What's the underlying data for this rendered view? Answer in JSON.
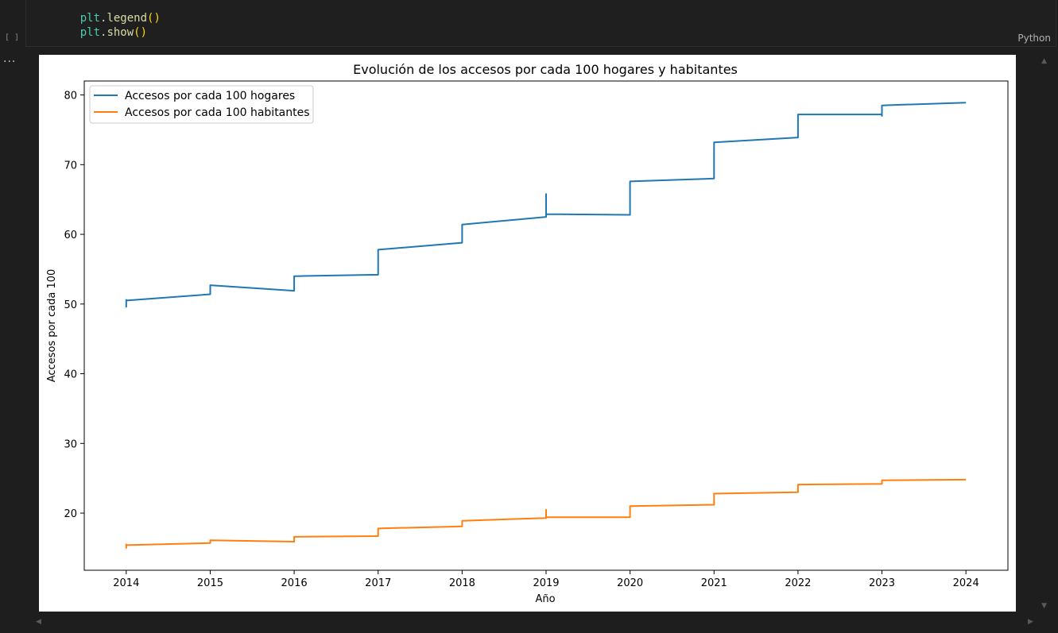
{
  "cell": {
    "code_lines": [
      {
        "obj": "plt",
        "fn": "legend",
        "args": "()"
      },
      {
        "obj": "plt",
        "fn": "show",
        "args": "()"
      }
    ],
    "execution_count": "[ ]",
    "language": "Python",
    "output_menu": "..."
  },
  "chart_data": {
    "type": "line",
    "title": "Evolución de los accesos por cada 100 hogares y habitantes",
    "xlabel": "Año",
    "ylabel": "Accesos por cada 100",
    "xlim": [
      2013.5,
      2024.5
    ],
    "ylim": [
      11.8,
      82
    ],
    "x_ticks": [
      2014,
      2015,
      2016,
      2017,
      2018,
      2019,
      2020,
      2021,
      2022,
      2023,
      2024
    ],
    "x_tick_labels": [
      "2014",
      "2015",
      "2016",
      "2017",
      "2018",
      "2019",
      "2020",
      "2021",
      "2022",
      "2023",
      "2024"
    ],
    "y_ticks": [
      20,
      30,
      40,
      50,
      60,
      70,
      80
    ],
    "y_tick_labels": [
      "20",
      "30",
      "40",
      "50",
      "60",
      "70",
      "80"
    ],
    "grid": false,
    "legend_position": "top-left",
    "series": [
      {
        "name": "Accesos por cada 100 hogares",
        "color": "#1f77b4",
        "x": [
          2014,
          2014,
          2014,
          2015,
          2015,
          2016,
          2016,
          2017,
          2017,
          2018,
          2018,
          2019,
          2019,
          2019,
          2020,
          2020,
          2021,
          2021,
          2022,
          2022,
          2023,
          2023,
          2023,
          2024
        ],
        "y": [
          50.7,
          49.6,
          50.5,
          51.4,
          52.7,
          51.9,
          54.0,
          54.2,
          57.8,
          58.8,
          61.4,
          62.5,
          65.8,
          62.9,
          62.8,
          67.6,
          68.0,
          73.2,
          73.9,
          77.2,
          77.2,
          77.0,
          78.5,
          78.9
        ]
      },
      {
        "name": "Accesos por cada 100 habitantes",
        "color": "#ff7f0e",
        "x": [
          2014,
          2014,
          2014,
          2015,
          2015,
          2016,
          2016,
          2017,
          2017,
          2018,
          2018,
          2019,
          2019,
          2019,
          2020,
          2020,
          2021,
          2021,
          2022,
          2022,
          2023,
          2023,
          2024
        ],
        "y": [
          15.6,
          15.0,
          15.4,
          15.7,
          16.1,
          15.9,
          16.6,
          16.7,
          17.8,
          18.1,
          18.9,
          19.3,
          20.5,
          19.4,
          19.4,
          21.0,
          21.2,
          22.8,
          23.0,
          24.1,
          24.2,
          24.7,
          24.8
        ]
      }
    ]
  }
}
